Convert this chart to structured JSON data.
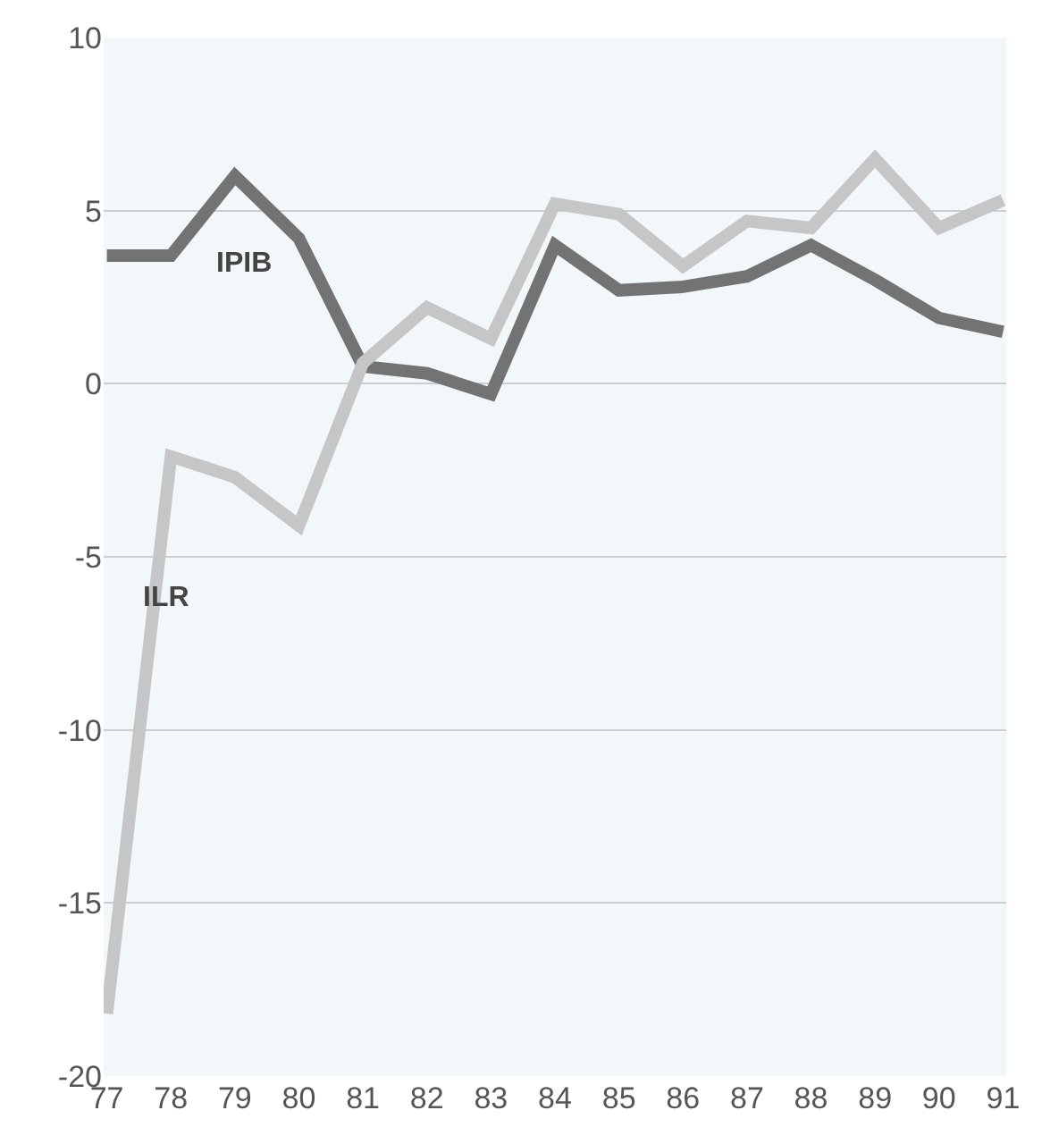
{
  "chart_data": {
    "type": "line",
    "categories": [
      "77",
      "78",
      "79",
      "80",
      "81",
      "82",
      "83",
      "84",
      "85",
      "86",
      "87",
      "88",
      "89",
      "90",
      "91"
    ],
    "series": [
      {
        "name": "IPIB",
        "color": "#737373",
        "values": [
          3.7,
          3.7,
          6.0,
          4.2,
          0.5,
          0.3,
          -0.3,
          4.0,
          2.7,
          2.8,
          3.1,
          4.0,
          3.0,
          1.9,
          1.5
        ]
      },
      {
        "name": "ILR",
        "color": "#c6c6c6",
        "values": [
          -18.2,
          -2.1,
          -2.7,
          -4.1,
          0.6,
          2.2,
          1.3,
          5.2,
          4.9,
          3.4,
          4.7,
          4.5,
          6.5,
          4.5,
          5.3
        ]
      }
    ],
    "ylim": [
      -20,
      10
    ],
    "yticks": [
      -20,
      -15,
      -10,
      -5,
      0,
      5,
      10
    ],
    "grid": "y",
    "legend": false,
    "marker": "none",
    "line_style": "solid"
  }
}
